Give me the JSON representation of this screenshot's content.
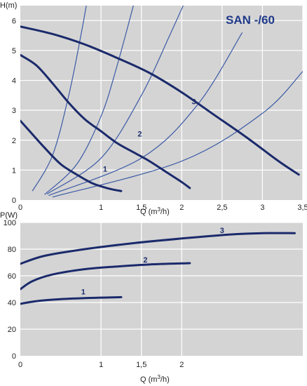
{
  "colors": {
    "plot_bg": "#d4d4d4",
    "grid": "#ffffff",
    "main_curve": "#1b2a6b",
    "parabola": "#3b5aa6",
    "title": "#1f3a8a"
  },
  "chart_data": [
    {
      "id": "head",
      "type": "line",
      "title": "SAN -/60",
      "ylabel": "H(m)",
      "xlabel_prefix": "Q (m",
      "xlabel_sup": "3",
      "xlabel_suffix": "/h)",
      "xlim": [
        0,
        3.5
      ],
      "ylim": [
        0,
        6.5
      ],
      "x_ticks": [
        "0",
        "1",
        "1,5",
        "2",
        "2,5",
        "3",
        "3,5"
      ],
      "x_tick_values": [
        0,
        1,
        1.5,
        2,
        2.5,
        3,
        3.5
      ],
      "y_ticks": [
        "0",
        "1",
        "2",
        "3",
        "4",
        "5",
        "6"
      ],
      "y_tick_values": [
        0,
        1,
        2,
        3,
        4,
        5,
        6
      ],
      "grid": true,
      "series": [
        {
          "name": "1",
          "label_at": [
            1.05,
            0.95
          ],
          "points": [
            [
              0,
              2.65
            ],
            [
              0.1,
              2.35
            ],
            [
              0.3,
              1.75
            ],
            [
              0.5,
              1.2
            ],
            [
              0.7,
              0.85
            ],
            [
              0.9,
              0.55
            ],
            [
              1.1,
              0.38
            ],
            [
              1.25,
              0.3
            ]
          ]
        },
        {
          "name": "2",
          "label_at": [
            1.48,
            2.12
          ],
          "points": [
            [
              0,
              4.85
            ],
            [
              0.2,
              4.5
            ],
            [
              0.4,
              3.9
            ],
            [
              0.6,
              3.25
            ],
            [
              0.8,
              2.7
            ],
            [
              1.0,
              2.3
            ],
            [
              1.2,
              1.9
            ],
            [
              1.4,
              1.6
            ],
            [
              1.6,
              1.3
            ],
            [
              1.8,
              0.95
            ],
            [
              2.0,
              0.6
            ],
            [
              2.1,
              0.4
            ]
          ]
        },
        {
          "name": "3",
          "label_at": [
            2.15,
            3.2
          ],
          "points": [
            [
              0,
              5.8
            ],
            [
              0.4,
              5.55
            ],
            [
              0.8,
              5.2
            ],
            [
              1.2,
              4.75
            ],
            [
              1.6,
              4.25
            ],
            [
              2.0,
              3.6
            ],
            [
              2.4,
              2.85
            ],
            [
              2.8,
              2.1
            ],
            [
              3.2,
              1.3
            ],
            [
              3.45,
              0.85
            ]
          ]
        }
      ],
      "system_curves": [
        {
          "points": [
            [
              0.15,
              0.3
            ],
            [
              0.4,
              1.5
            ],
            [
              0.6,
              3.5
            ],
            [
              0.75,
              5.5
            ],
            [
              0.85,
              7.0
            ]
          ]
        },
        {
          "points": [
            [
              0.3,
              0.18
            ],
            [
              0.7,
              1.2
            ],
            [
              1.0,
              2.8
            ],
            [
              1.2,
              4.5
            ],
            [
              1.45,
              7.0
            ]
          ]
        },
        {
          "points": [
            [
              0.33,
              0.2
            ],
            [
              1.0,
              1.4
            ],
            [
              1.5,
              3.5
            ],
            [
              1.85,
              5.5
            ],
            [
              2.1,
              7.0
            ]
          ]
        },
        {
          "points": [
            [
              0.35,
              0.15
            ],
            [
              1.5,
              1.4
            ],
            [
              2.2,
              3.2
            ],
            [
              2.75,
              5.6
            ]
          ]
        },
        {
          "points": [
            [
              0.4,
              0.1
            ],
            [
              2.0,
              1.3
            ],
            [
              3.0,
              2.9
            ],
            [
              3.5,
              4.3
            ]
          ]
        }
      ]
    },
    {
      "id": "power",
      "type": "line",
      "ylabel": "P(W)",
      "xlabel_prefix": "Q (m",
      "xlabel_sup": "3",
      "xlabel_suffix": "/h)",
      "xlim": [
        0,
        3.5
      ],
      "ylim": [
        0,
        100
      ],
      "x_ticks": [
        "0",
        "1",
        "1,5",
        "2"
      ],
      "x_tick_values": [
        0,
        1,
        1.5,
        2
      ],
      "y_ticks": [
        "0",
        "20",
        "40",
        "60",
        "80",
        "100"
      ],
      "y_tick_values": [
        0,
        20,
        40,
        60,
        80,
        100
      ],
      "grid": true,
      "series": [
        {
          "name": "1",
          "label_at": [
            0.78,
            46
          ],
          "points": [
            [
              0,
              39
            ],
            [
              0.2,
              41
            ],
            [
              0.5,
              42.5
            ],
            [
              0.9,
              43.5
            ],
            [
              1.25,
              44
            ]
          ]
        },
        {
          "name": "2",
          "label_at": [
            1.55,
            70
          ],
          "points": [
            [
              0,
              50
            ],
            [
              0.15,
              56
            ],
            [
              0.4,
              61
            ],
            [
              0.8,
              65
            ],
            [
              1.2,
              67
            ],
            [
              1.6,
              68.5
            ],
            [
              2.1,
              69.5
            ]
          ]
        },
        {
          "name": "3",
          "label_at": [
            2.5,
            92
          ],
          "points": [
            [
              0,
              69
            ],
            [
              0.3,
              75
            ],
            [
              0.8,
              80
            ],
            [
              1.4,
              84.5
            ],
            [
              2.0,
              88
            ],
            [
              2.6,
              91
            ],
            [
              3.0,
              92
            ],
            [
              3.4,
              92
            ]
          ]
        }
      ]
    }
  ]
}
